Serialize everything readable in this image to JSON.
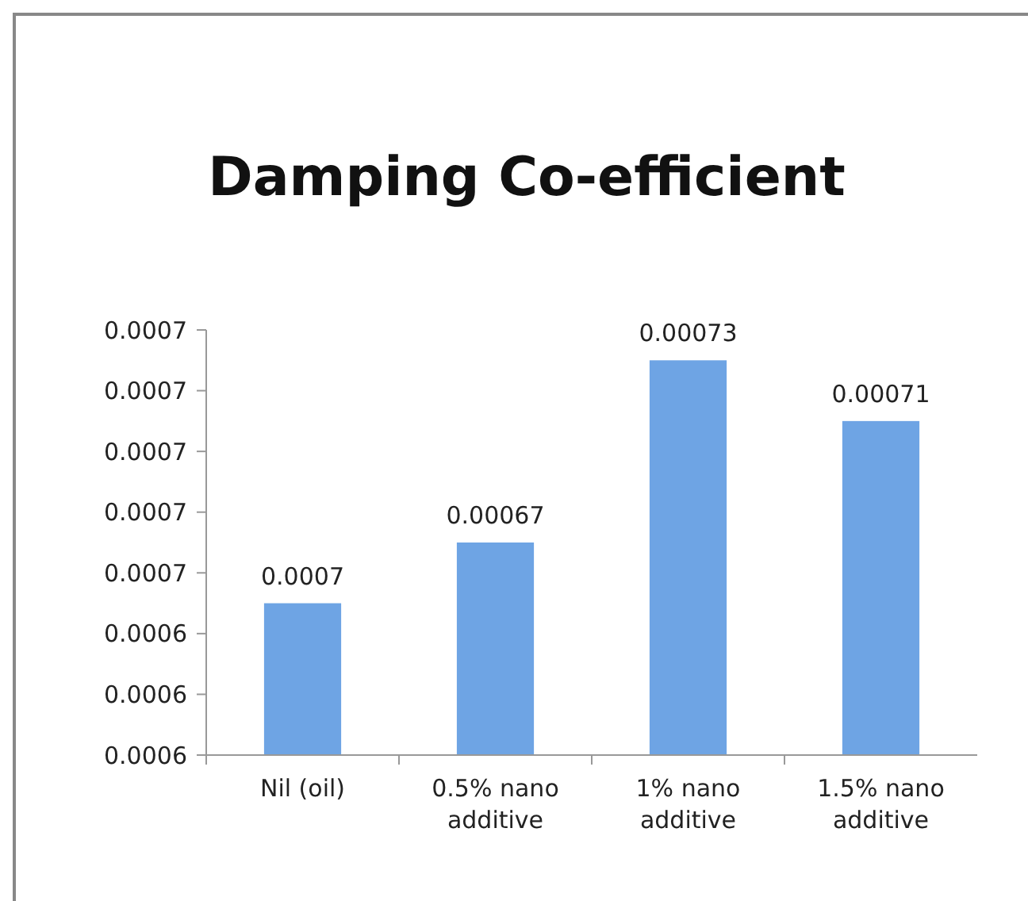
{
  "chart_data": {
    "type": "bar",
    "title": "Damping Co-efficient",
    "categories": [
      "Nil (oil)",
      "0.5% nano additive",
      "1% nano additive",
      "1.5% nano additive"
    ],
    "values": [
      0.00065,
      0.00067,
      0.00073,
      0.00071
    ],
    "value_labels": [
      "0.0007",
      "0.00067",
      "0.00073",
      "0.00071"
    ],
    "color": "#6ea4e4",
    "ylim": [
      0.0006,
      0.00074
    ],
    "yticks": [
      {
        "value": 0.0006,
        "label": "0.0006"
      },
      {
        "value": 0.00062,
        "label": "0.0006"
      },
      {
        "value": 0.00064,
        "label": "0.0006"
      },
      {
        "value": 0.00066,
        "label": "0.0007"
      },
      {
        "value": 0.00068,
        "label": "0.0007"
      },
      {
        "value": 0.0007,
        "label": "0.0007"
      },
      {
        "value": 0.00072,
        "label": "0.0007"
      },
      {
        "value": 0.00074,
        "label": "0.0007"
      }
    ],
    "grid": false
  }
}
